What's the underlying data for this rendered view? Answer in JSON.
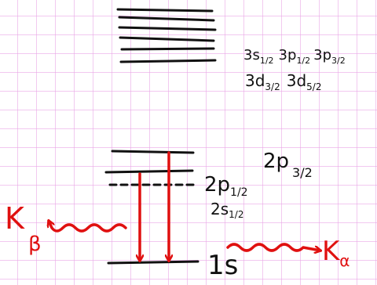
{
  "levels": {
    "n3": [
      {
        "symbol": "3s",
        "sub": "1/2"
      },
      {
        "symbol": "3p",
        "sub": "1/2"
      },
      {
        "symbol": "3p",
        "sub": "3/2"
      },
      {
        "symbol": "3d",
        "sub": "3/2"
      },
      {
        "symbol": "3d",
        "sub": "5/2"
      }
    ],
    "n2": [
      {
        "symbol": "2p",
        "sub": "3/2"
      },
      {
        "symbol": "2p",
        "sub": "1/2"
      },
      {
        "symbol": "2s",
        "sub": "1/2"
      }
    ],
    "n1": [
      {
        "symbol": "1s"
      }
    ]
  },
  "transitions": [
    {
      "symbol": "K",
      "sub": "β"
    },
    {
      "symbol": "K",
      "sub": "α"
    }
  ]
}
